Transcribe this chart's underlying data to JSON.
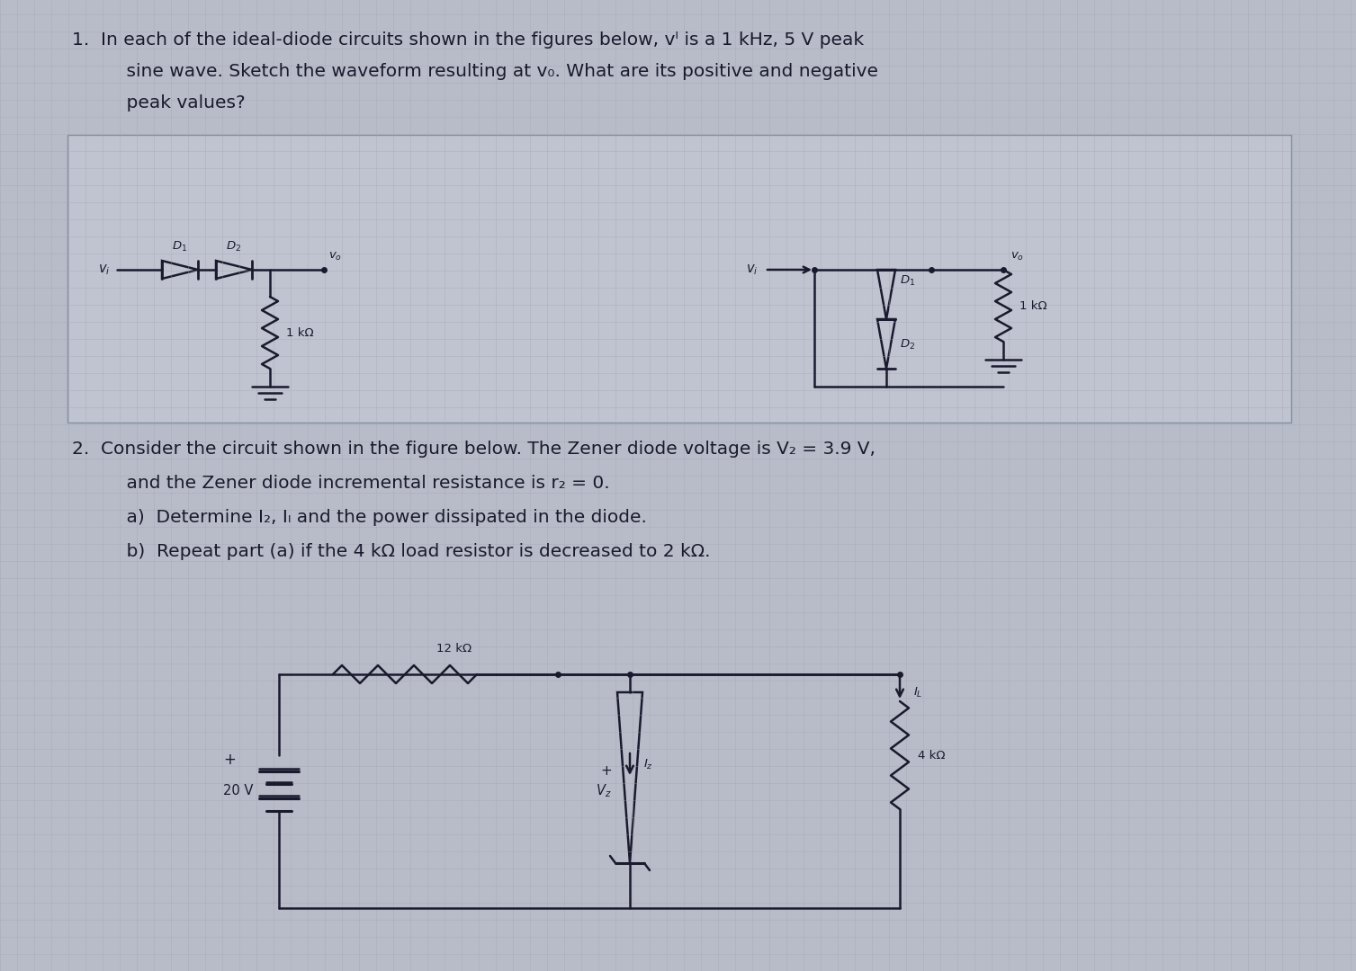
{
  "page_bg": "#b8bcc8",
  "grid_line_color": "#a0a4b0",
  "circuit_box_bg": "#c0c4d0",
  "text_color": "#1a1a2e",
  "line_color": "#1a1a2e",
  "p1_line1": "1.  In each of the ideal-diode circuits shown in the figures below, vᴵ is a 1 kHz, 5 V peak",
  "p1_line2": "    sine wave. Sketch the waveform resulting at v₀. What are its positive and negative",
  "p1_line3": "    peak values?",
  "p2_line1": "2.  Consider the circuit shown in the figure below. The Zener diode voltage is V₂ = 3.9 V,",
  "p2_line2": "    and the Zener diode incremental resistance is r₂ = 0.",
  "p2_line3": "    a)  Determine I₂, Iₗ and the power dissipated in the diode.",
  "p2_line4": "    b)  Repeat part (a) if the 4 kΩ load resistor is decreased to 2 kΩ.",
  "font_size": 14.5,
  "circuit_font_size": 10.5
}
